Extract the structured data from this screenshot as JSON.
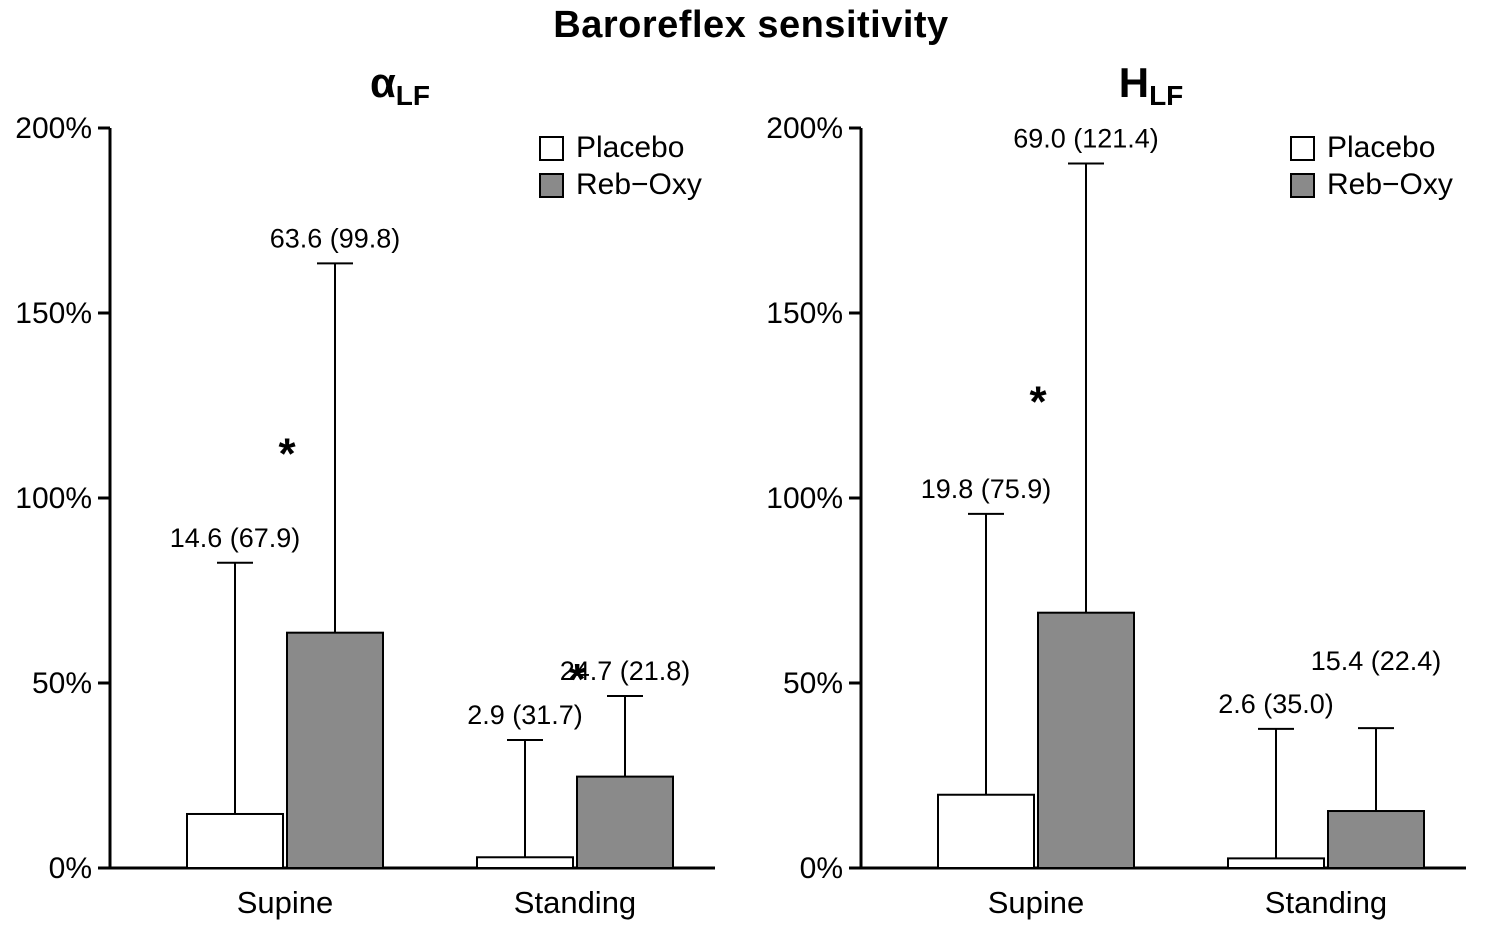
{
  "figure": {
    "title": "Baroreflex sensitivity"
  },
  "chart_data": {
    "type": "bar",
    "title": "Baroreflex sensitivity",
    "xlabel": "",
    "ylabel": "",
    "ylim": [
      0,
      200
    ],
    "ytick_values": [
      0,
      50,
      100,
      150,
      200
    ],
    "ytick_labels": [
      "0%",
      "50%",
      "100%",
      "150%",
      "200%"
    ],
    "grid": false,
    "legend_position": "top-right-inside",
    "categories": [
      "Supine",
      "Standing"
    ],
    "series": [
      {
        "name": "Placebo",
        "fill": "#ffffff"
      },
      {
        "name": "Reb−Oxy",
        "fill": "#8a8a8a"
      }
    ],
    "value_note": "bar = value (%); whisker top = value + dispersion; label = value (dispersion)",
    "panels": [
      {
        "id": "alpha_lf",
        "subtitle_main": "α",
        "subtitle_sub": "LF",
        "groups": [
          {
            "category": "Supine",
            "bars": [
              {
                "series": "Placebo",
                "value": 14.6,
                "dispersion": 67.9,
                "label": "14.6 (67.9)"
              },
              {
                "series": "Reb−Oxy",
                "value": 63.6,
                "dispersion": 99.8,
                "label": "63.6 (99.8)"
              }
            ],
            "significance": {
              "symbol": "*",
              "y_pct": 108
            }
          },
          {
            "category": "Standing",
            "bars": [
              {
                "series": "Placebo",
                "value": 2.9,
                "dispersion": 31.7,
                "label": "2.9 (31.7)"
              },
              {
                "series": "Reb−Oxy",
                "value": 24.7,
                "dispersion": 21.8,
                "label": "24.7 (21.8)"
              }
            ],
            "significance": {
              "symbol": "*",
              "y_pct": 47
            }
          }
        ]
      },
      {
        "id": "h_lf",
        "subtitle_main": "H",
        "subtitle_sub": "LF",
        "groups": [
          {
            "category": "Supine",
            "bars": [
              {
                "series": "Placebo",
                "value": 19.8,
                "dispersion": 75.9,
                "label": "19.8 (75.9)"
              },
              {
                "series": "Reb−Oxy",
                "value": 69.0,
                "dispersion": 121.4,
                "label": "69.0 (121.4)"
              }
            ],
            "significance": {
              "symbol": "*",
              "y_pct": 122
            }
          },
          {
            "category": "Standing",
            "bars": [
              {
                "series": "Placebo",
                "value": 2.6,
                "dispersion": 35.0,
                "label": "2.6 (35.0)"
              },
              {
                "series": "Reb−Oxy",
                "value": 15.4,
                "dispersion": 22.4,
                "label": "15.4 (22.4)"
              }
            ],
            "significance": null
          }
        ]
      }
    ]
  }
}
